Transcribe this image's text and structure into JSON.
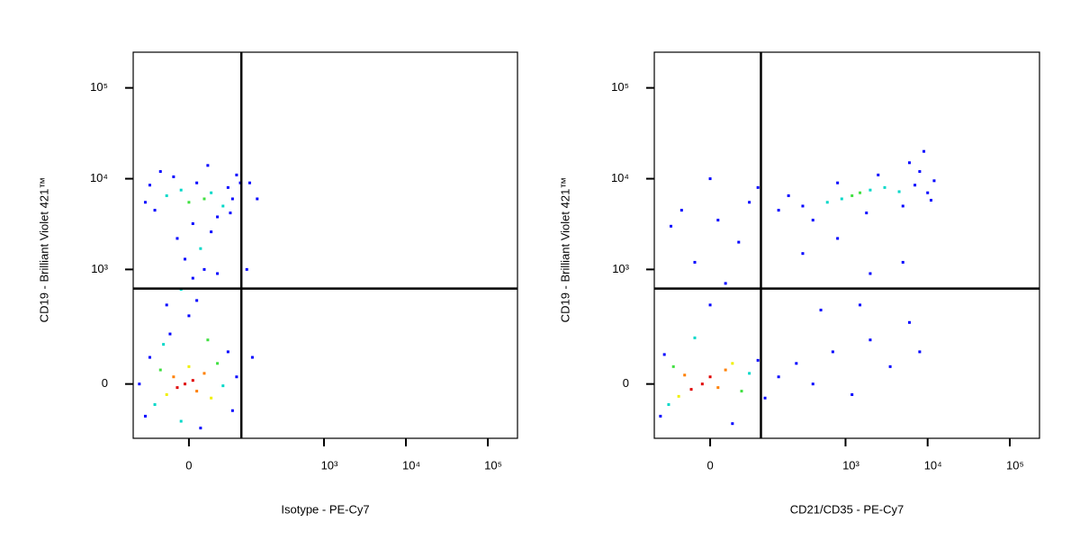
{
  "chart_data": [
    {
      "type": "scatter",
      "xlabel": "Isotype - PE-Cy7",
      "ylabel": "CD19 - Brilliant Violet 421™",
      "xscale": "biexponential",
      "yscale": "biexponential",
      "xlim": [
        -103,
        230000
      ],
      "ylim": [
        -204,
        247000
      ],
      "xticks": [
        0,
        {
          "value": 1000,
          "label": "10³"
        },
        {
          "value": 10000,
          "label": "10⁴"
        },
        {
          "value": 100000,
          "label": "10⁵"
        }
      ],
      "yticks": [
        0,
        {
          "value": 1000,
          "label": "10³"
        },
        {
          "value": 10000,
          "label": "10⁴"
        },
        {
          "value": 100000,
          "label": "10⁵"
        }
      ],
      "gates": {
        "x": 93,
        "y": 613
      },
      "x": [
        -5,
        5,
        -15,
        10,
        -20,
        20,
        -30,
        0,
        30,
        -40,
        40,
        -50,
        50,
        -60,
        60,
        -70,
        70,
        -35,
        25,
        -10,
        80,
        -85,
        15,
        -25,
        0,
        10,
        -10,
        5,
        20,
        -5,
        15,
        -15,
        30,
        -30,
        40,
        20,
        0,
        30,
        -10,
        50,
        -30,
        60,
        -50,
        10,
        70,
        -60,
        40,
        -20,
        80,
        -70,
        90,
        5,
        -40,
        65,
        25,
        120,
        150,
        110,
        130
      ],
      "y": [
        0,
        10,
        -10,
        -20,
        20,
        30,
        -30,
        50,
        -40,
        40,
        60,
        -60,
        -5,
        80,
        100,
        -100,
        -80,
        130,
        150,
        -120,
        20,
        0,
        -150,
        180,
        300,
        450,
        600,
        800,
        1000,
        1300,
        1700,
        2200,
        2600,
        400,
        900,
        6000,
        5500,
        7000,
        7500,
        5000,
        6500,
        8000,
        4500,
        9000,
        6000,
        8500,
        3800,
        10500,
        11000,
        5500,
        9000,
        3200,
        12000,
        4200,
        14000,
        9000,
        6000,
        1000,
        80
      ],
      "colors": [
        "#e00000",
        "#e00000",
        "#e00000",
        "#ff8000",
        "#ff8000",
        "#ff8000",
        "#f0f000",
        "#f0f000",
        "#f0f000",
        "#40e040",
        "#40e040",
        "#00d8c8",
        "#00d8c8",
        "#0000ff",
        "#0000ff",
        "#0000ff",
        "#0000ff",
        "#00d8c8",
        "#40e040",
        "#00d8c8",
        "#0000ff",
        "#0000ff",
        "#0000ff",
        "#0000ff",
        "#0000ff",
        "#0000ff",
        "#00d8c8",
        "#0000ff",
        "#0000ff",
        "#0000ff",
        "#00d8c8",
        "#0000ff",
        "#0000ff",
        "#0000ff",
        "#0000ff",
        "#40e040",
        "#40e040",
        "#00d8c8",
        "#00d8c8",
        "#00d8c8",
        "#00d8c8",
        "#0000ff",
        "#0000ff",
        "#0000ff",
        "#0000ff",
        "#0000ff",
        "#0000ff",
        "#0000ff",
        "#0000ff",
        "#0000ff",
        "#0000ff",
        "#0000ff",
        "#0000ff",
        "#0000ff",
        "#0000ff",
        "#0000ff",
        "#0000ff",
        "#0000ff",
        "#0000ff"
      ]
    },
    {
      "type": "scatter",
      "xlabel": "CD21/CD35 - PE-Cy7",
      "ylabel": "CD19 - Brilliant Violet 421™",
      "xscale": "biexponential",
      "yscale": "biexponential",
      "xlim": [
        -103,
        230000
      ],
      "ylim": [
        -204,
        247000
      ],
      "xticks": [
        0,
        {
          "value": 1000,
          "label": "10³"
        },
        {
          "value": 10000,
          "label": "10⁴"
        },
        {
          "value": 100000,
          "label": "10⁵"
        }
      ],
      "yticks": [
        0,
        {
          "value": 1000,
          "label": "10³"
        },
        {
          "value": 10000,
          "label": "10⁴"
        },
        {
          "value": 100000,
          "label": "10⁵"
        }
      ],
      "gates": {
        "x": 88,
        "y": 613
      },
      "x": [
        -10,
        0,
        -25,
        10,
        -35,
        20,
        -45,
        30,
        -55,
        45,
        -65,
        60,
        -75,
        80,
        -85,
        100,
        150,
        250,
        400,
        700,
        1200,
        2000,
        3500,
        6000,
        8000,
        -20,
        30,
        500,
        1500,
        0,
        20,
        -20,
        40,
        10,
        -40,
        60,
        -60,
        80,
        0,
        1500,
        1200,
        2000,
        900,
        3000,
        600,
        4500,
        7000,
        10000,
        12000,
        300,
        150,
        200,
        800,
        2500,
        5000,
        8000,
        400,
        1800,
        6000,
        11000,
        9000,
        300,
        800,
        2000,
        5000
      ],
      "y": [
        0,
        20,
        -15,
        -10,
        25,
        40,
        -35,
        60,
        50,
        -20,
        -60,
        30,
        90,
        70,
        -100,
        -40,
        20,
        60,
        0,
        100,
        -30,
        150,
        50,
        250,
        100,
        160,
        -130,
        350,
        400,
        400,
        700,
        1200,
        2000,
        3500,
        4500,
        5500,
        3000,
        8000,
        10000,
        7000,
        6500,
        7500,
        6000,
        8000,
        5500,
        7200,
        8500,
        7000,
        9500,
        5000,
        4500,
        6500,
        9000,
        11000,
        5000,
        12000,
        3500,
        4200,
        15000,
        5800,
        20000,
        1500,
        2200,
        900,
        1200
      ],
      "colors": [
        "#e00000",
        "#e00000",
        "#e00000",
        "#ff8000",
        "#ff8000",
        "#ff8000",
        "#f0f000",
        "#f0f000",
        "#40e040",
        "#40e040",
        "#00d8c8",
        "#00d8c8",
        "#0000ff",
        "#0000ff",
        "#0000ff",
        "#0000ff",
        "#0000ff",
        "#0000ff",
        "#0000ff",
        "#0000ff",
        "#0000ff",
        "#0000ff",
        "#0000ff",
        "#0000ff",
        "#0000ff",
        "#00d8c8",
        "#0000ff",
        "#0000ff",
        "#0000ff",
        "#0000ff",
        "#0000ff",
        "#0000ff",
        "#0000ff",
        "#0000ff",
        "#0000ff",
        "#0000ff",
        "#0000ff",
        "#0000ff",
        "#0000ff",
        "#40e040",
        "#40e040",
        "#00d8c8",
        "#00d8c8",
        "#00d8c8",
        "#00d8c8",
        "#00d8c8",
        "#0000ff",
        "#0000ff",
        "#0000ff",
        "#0000ff",
        "#0000ff",
        "#0000ff",
        "#0000ff",
        "#0000ff",
        "#0000ff",
        "#0000ff",
        "#0000ff",
        "#0000ff",
        "#0000ff",
        "#0000ff",
        "#0000ff",
        "#0000ff",
        "#0000ff",
        "#0000ff",
        "#0000ff"
      ]
    }
  ]
}
